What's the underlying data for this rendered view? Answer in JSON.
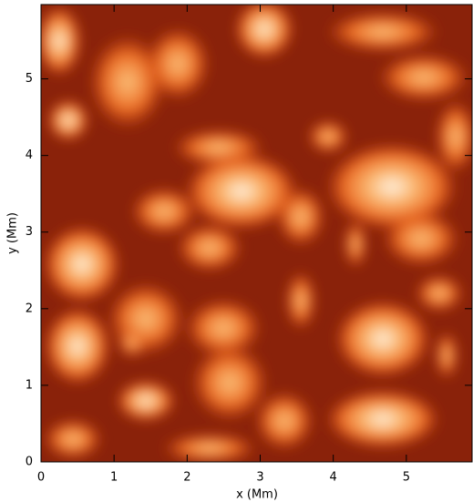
{
  "chart_data": {
    "type": "image",
    "xlabel": "x (Mm)",
    "ylabel": "y (Mm)",
    "xlim": [
      0,
      5.9
    ],
    "ylim": [
      0,
      5.97
    ],
    "xticks": [
      0,
      1,
      2,
      3,
      4,
      5
    ],
    "yticks": [
      0,
      1,
      2,
      3,
      4,
      5
    ]
  }
}
